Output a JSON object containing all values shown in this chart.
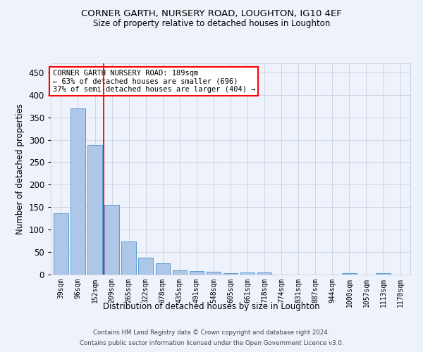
{
  "title1": "CORNER GARTH, NURSERY ROAD, LOUGHTON, IG10 4EF",
  "title2": "Size of property relative to detached houses in Loughton",
  "xlabel": "Distribution of detached houses by size in Loughton",
  "ylabel": "Number of detached properties",
  "bar_labels": [
    "39sqm",
    "96sqm",
    "152sqm",
    "209sqm",
    "265sqm",
    "322sqm",
    "378sqm",
    "435sqm",
    "491sqm",
    "548sqm",
    "605sqm",
    "661sqm",
    "718sqm",
    "774sqm",
    "831sqm",
    "887sqm",
    "944sqm",
    "1000sqm",
    "1057sqm",
    "1113sqm",
    "1170sqm"
  ],
  "bar_values": [
    136,
    370,
    289,
    155,
    74,
    37,
    25,
    10,
    8,
    6,
    3,
    4,
    4,
    0,
    0,
    0,
    0,
    3,
    0,
    3,
    0
  ],
  "bar_color": "#aec6e8",
  "bar_edge_color": "#5a9fd4",
  "ylim": [
    0,
    470
  ],
  "yticks": [
    0,
    50,
    100,
    150,
    200,
    250,
    300,
    350,
    400,
    450
  ],
  "vline_x": 2.5,
  "vline_color": "red",
  "annotation_text": "CORNER GARTH NURSERY ROAD: 189sqm\n← 63% of detached houses are smaller (696)\n37% of semi-detached houses are larger (404) →",
  "annotation_box_color": "white",
  "annotation_box_edge": "red",
  "footer1": "Contains HM Land Registry data © Crown copyright and database right 2024.",
  "footer2": "Contains public sector information licensed under the Open Government Licence v3.0.",
  "bg_color": "#eef2fb",
  "plot_bg_color": "#eef2fb"
}
